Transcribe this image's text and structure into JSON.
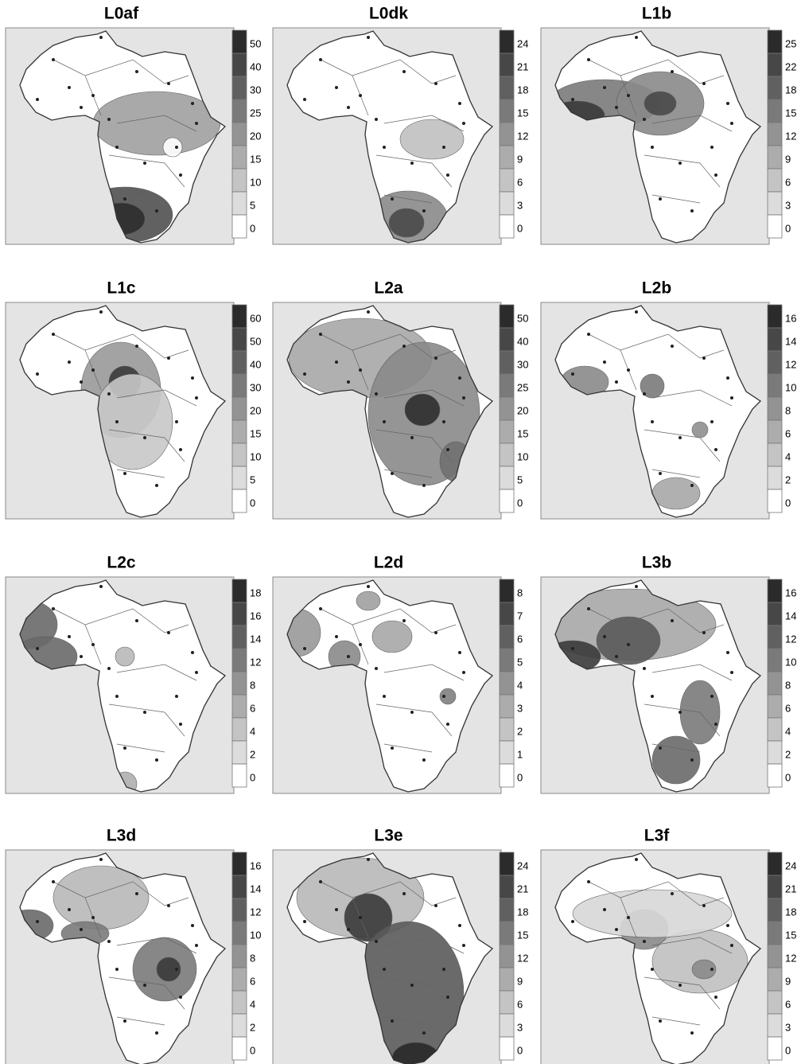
{
  "panels": [
    {
      "title": "L0af",
      "legend": [
        50,
        40,
        30,
        25,
        20,
        15,
        10,
        5,
        0
      ]
    },
    {
      "title": "L0dk",
      "legend": [
        24,
        21,
        18,
        15,
        12,
        9,
        6,
        3,
        0
      ]
    },
    {
      "title": "L1b",
      "legend": [
        25,
        22,
        18,
        15,
        12,
        9,
        6,
        3,
        0
      ]
    },
    {
      "title": "L1c",
      "legend": [
        60,
        50,
        40,
        30,
        20,
        15,
        10,
        5,
        0
      ]
    },
    {
      "title": "L2a",
      "legend": [
        50,
        40,
        30,
        25,
        20,
        15,
        10,
        5,
        0
      ]
    },
    {
      "title": "L2b",
      "legend": [
        16,
        14,
        12,
        10,
        8,
        6,
        4,
        2,
        0
      ]
    },
    {
      "title": "L2c",
      "legend": [
        18,
        16,
        14,
        12,
        8,
        6,
        4,
        2,
        0
      ]
    },
    {
      "title": "L2d",
      "legend": [
        8,
        7,
        6,
        5,
        4,
        3,
        2,
        1,
        0
      ]
    },
    {
      "title": "L3b",
      "legend": [
        16,
        14,
        12,
        10,
        8,
        6,
        4,
        2,
        0
      ]
    },
    {
      "title": "L3d",
      "legend": [
        16,
        14,
        12,
        10,
        8,
        6,
        4,
        2,
        0
      ]
    },
    {
      "title": "L3e",
      "legend": [
        24,
        21,
        18,
        15,
        12,
        9,
        6,
        3,
        0
      ]
    },
    {
      "title": "L3f",
      "legend": [
        24,
        21,
        18,
        15,
        12,
        9,
        6,
        3,
        0
      ]
    }
  ]
}
